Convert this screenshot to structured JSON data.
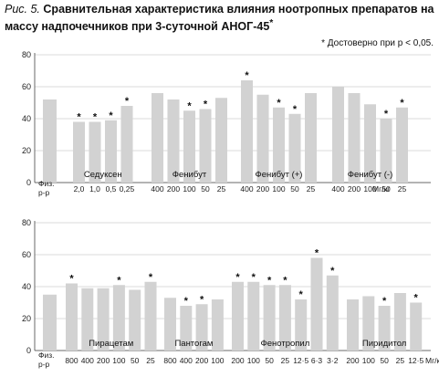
{
  "caption": {
    "prefix": "Рис. 5.",
    "text": "Сравнительная характеристика влияния ноотропных препаратов на массу надпочечников при 3-суточной АНОГ-45"
  },
  "note": "* Достоверно при p < 0,05.",
  "chart_data": [
    {
      "type": "bar",
      "title": "",
      "xlabel": "",
      "ylabel": "",
      "ylim": [
        0,
        80
      ],
      "yticks": [
        0,
        20,
        40,
        60,
        80
      ],
      "grid": true,
      "unit": "Мг/кг",
      "control": {
        "label": "Физ. р-р",
        "value": 52
      },
      "groups": [
        {
          "name": "Седуксен",
          "doses": [
            "2,0",
            "1,0",
            "0,5",
            "0,25"
          ],
          "values": [
            38,
            38,
            39,
            48
          ],
          "significant": [
            true,
            true,
            true,
            true
          ]
        },
        {
          "name": "Фенибут",
          "doses": [
            "400",
            "200",
            "100",
            "50",
            "25"
          ],
          "values": [
            56,
            52,
            45,
            46,
            53
          ],
          "significant": [
            false,
            false,
            true,
            true,
            false
          ]
        },
        {
          "name": "Фенибут (+)",
          "doses": [
            "400",
            "200",
            "100",
            "50",
            "25"
          ],
          "values": [
            64,
            55,
            47,
            43,
            56
          ],
          "significant": [
            true,
            false,
            true,
            true,
            false
          ]
        },
        {
          "name": "Фенибут (-)",
          "doses": [
            "400",
            "200",
            "100",
            "50",
            "25"
          ],
          "values": [
            60,
            56,
            49,
            40,
            47
          ],
          "significant": [
            false,
            false,
            false,
            true,
            true
          ]
        }
      ]
    },
    {
      "type": "bar",
      "title": "",
      "xlabel": "",
      "ylabel": "",
      "ylim": [
        0,
        80
      ],
      "yticks": [
        0,
        20,
        40,
        60,
        80
      ],
      "grid": true,
      "unit": "Мг/кг",
      "control": {
        "label": "Физ. р-р",
        "value": 35
      },
      "groups": [
        {
          "name": "Пирацетам",
          "doses": [
            "800",
            "400",
            "200",
            "100",
            "50",
            "25"
          ],
          "values": [
            42,
            39,
            39,
            41,
            38,
            43
          ],
          "significant": [
            true,
            false,
            false,
            true,
            false,
            true
          ]
        },
        {
          "name": "Пантогам",
          "doses": [
            "800",
            "400",
            "200",
            "100"
          ],
          "values": [
            33,
            28,
            29,
            32
          ],
          "significant": [
            false,
            true,
            true,
            false
          ]
        },
        {
          "name": "Фенотропил",
          "doses": [
            "200",
            "100",
            "50",
            "25",
            "12·5",
            "6·3",
            "3·2"
          ],
          "values": [
            43,
            43,
            41,
            41,
            32,
            58,
            47
          ],
          "significant": [
            true,
            true,
            true,
            true,
            true,
            true,
            true
          ]
        },
        {
          "name": "Пиридитол",
          "doses": [
            "200",
            "100",
            "50",
            "25",
            "12·5"
          ],
          "values": [
            32,
            34,
            28,
            36,
            30
          ],
          "significant": [
            false,
            false,
            true,
            false,
            true
          ]
        }
      ]
    }
  ]
}
